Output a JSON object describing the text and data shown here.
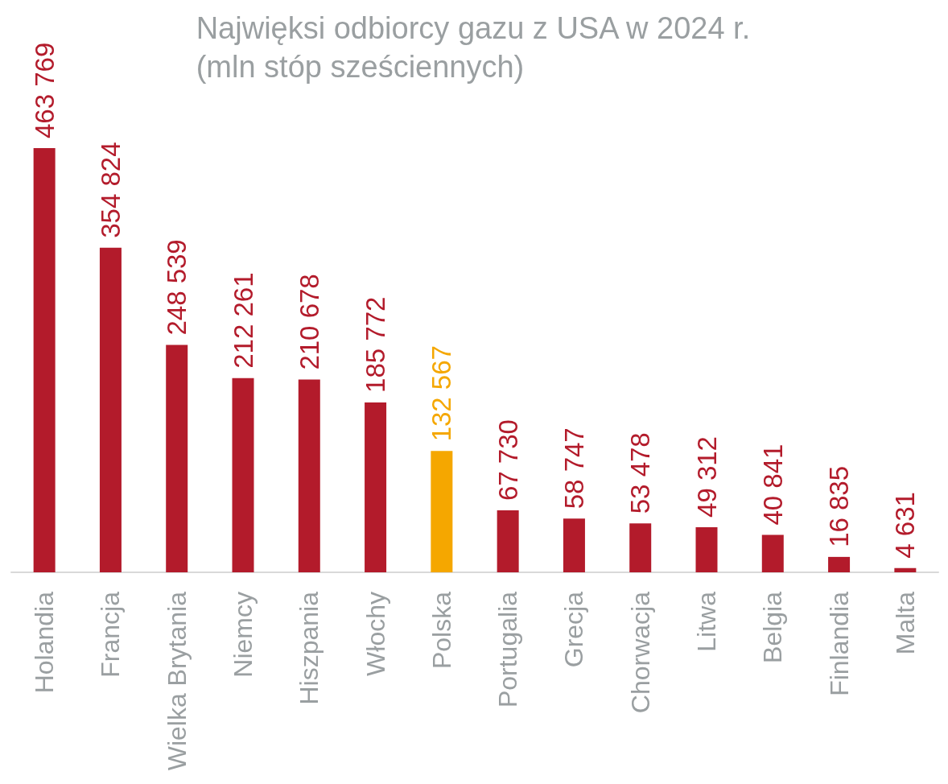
{
  "chart_data": {
    "type": "bar",
    "title": "Najwięksi odbiorcy gazu z USA w 2024 r.\n(mln stóp sześciennych)",
    "categories": [
      "Holandia",
      "Francja",
      "Wielka Brytania",
      "Niemcy",
      "Hiszpania",
      "Włochy",
      "Polska",
      "Portugalia",
      "Grecja",
      "Chorwacja",
      "Litwa",
      "Belgia",
      "Finlandia",
      "Malta"
    ],
    "values": [
      463769,
      354824,
      248539,
      212261,
      210678,
      185772,
      132567,
      67730,
      58747,
      53478,
      49312,
      40841,
      16835,
      4631
    ],
    "colors": [
      "#b31b2b",
      "#b31b2b",
      "#b31b2b",
      "#b31b2b",
      "#b31b2b",
      "#b31b2b",
      "#f5a700",
      "#b31b2b",
      "#b31b2b",
      "#b31b2b",
      "#b31b2b",
      "#b31b2b",
      "#b31b2b",
      "#b31b2b"
    ],
    "value_labels": [
      "463 769",
      "354 824",
      "248 539",
      "212 261",
      "210 678",
      "185 772",
      "132 567",
      "67 730",
      "58 747",
      "53 478",
      "49 312",
      "40 841",
      "16 835",
      "4 631"
    ]
  }
}
